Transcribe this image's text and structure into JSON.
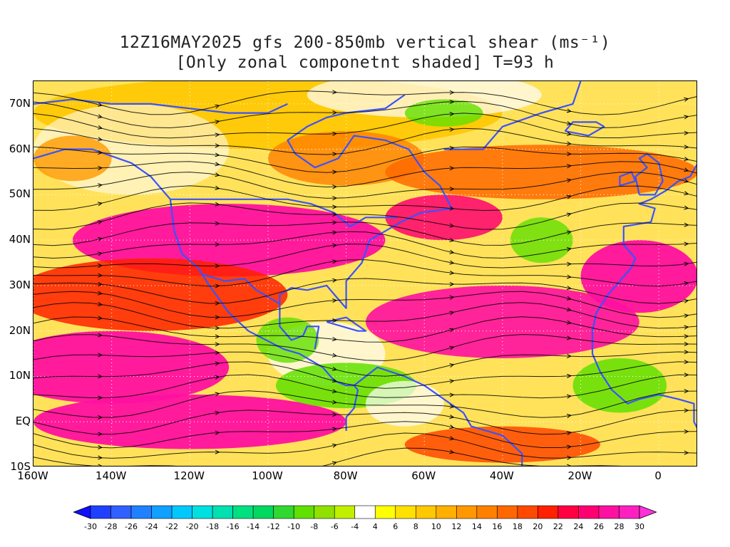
{
  "title": {
    "line1": "12Z16MAY2025 gfs 200-850mb vertical shear (ms⁻¹)",
    "line2": "[Only zonal componetnt shaded] T=93 h"
  },
  "map": {
    "lon_range": [
      -160,
      10
    ],
    "lat_range": [
      -10,
      75
    ],
    "lat_ticks": [
      "70N",
      "60N",
      "50N",
      "40N",
      "30N",
      "20N",
      "10N",
      "EQ",
      "10S"
    ],
    "lat_values": [
      70,
      60,
      50,
      40,
      30,
      20,
      10,
      0,
      -10
    ],
    "lon_ticks": [
      "160W",
      "140W",
      "120W",
      "100W",
      "80W",
      "60W",
      "40W",
      "20W",
      "0"
    ],
    "lon_values": [
      -160,
      -140,
      -120,
      -100,
      -80,
      -60,
      -40,
      -20,
      0
    ],
    "coastline_color": "#3a52ff",
    "streamline_color": "#000000",
    "contour_color": "#a020c0"
  },
  "colorbar": {
    "labels": [
      "-30",
      "-28",
      "-26",
      "-24",
      "-22",
      "-20",
      "-18",
      "-16",
      "-14",
      "-12",
      "-10",
      "-8",
      "-6",
      "-4",
      "4",
      "6",
      "8",
      "10",
      "12",
      "14",
      "16",
      "18",
      "20",
      "22",
      "24",
      "26",
      "28",
      "30"
    ],
    "colors": [
      "#1010ff",
      "#2040ff",
      "#3060ff",
      "#2080ff",
      "#10a0ff",
      "#00c8ff",
      "#00e0e0",
      "#00e0b0",
      "#00e080",
      "#00d860",
      "#30d830",
      "#60e000",
      "#90e000",
      "#c0f000",
      "#ffffff",
      "#ffff00",
      "#ffe000",
      "#ffc800",
      "#ffb000",
      "#ff9800",
      "#ff8000",
      "#ff6800",
      "#ff4800",
      "#ff2000",
      "#ff0040",
      "#ff0070",
      "#ff10a0",
      "#ff20c0",
      "#ff30d8"
    ]
  }
}
